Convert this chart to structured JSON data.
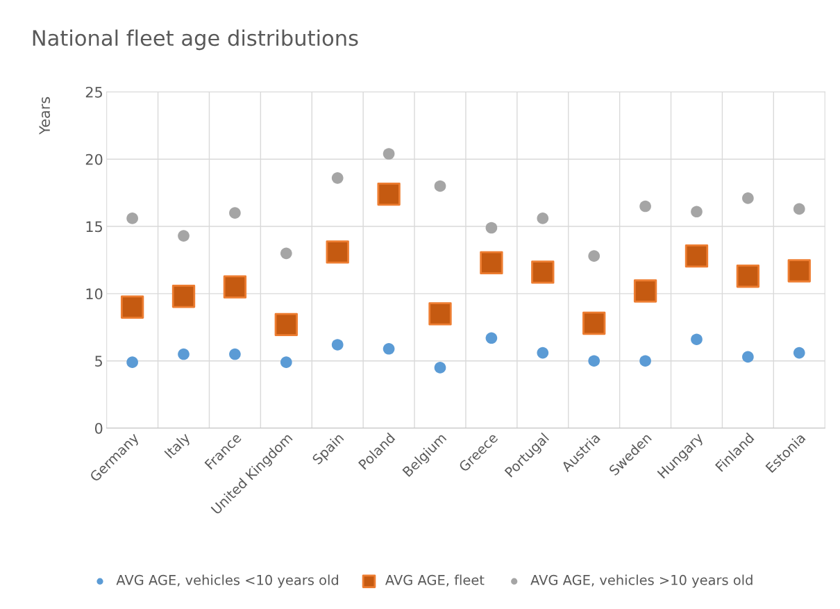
{
  "chart_data": {
    "type": "scatter",
    "title": "National fleet age distributions",
    "ylabel": "Years",
    "categories": [
      "Germany",
      "Italy",
      "France",
      "United Kingdom",
      "Spain",
      "Poland",
      "Belgium",
      "Greece",
      "Portugal",
      "Austria",
      "Sweden",
      "Hungary",
      "Finland",
      "Estonia"
    ],
    "series": [
      {
        "name": "AVG AGE, vehicles <10 years old",
        "color": "#5b9bd5",
        "marker": "circle",
        "values": [
          4.9,
          5.5,
          5.5,
          4.9,
          6.2,
          5.9,
          4.5,
          6.7,
          5.6,
          5.0,
          5.0,
          6.6,
          5.3,
          5.6
        ]
      },
      {
        "name": "AVG AGE, fleet",
        "color": "#c55a11",
        "marker": "square",
        "values": [
          9.0,
          9.8,
          10.5,
          7.7,
          13.1,
          17.4,
          8.5,
          12.3,
          11.6,
          7.8,
          10.2,
          12.8,
          11.3,
          11.7
        ]
      },
      {
        "name": "AVG AGE, vehicles >10 years old",
        "color": "#a5a5a5",
        "marker": "circle",
        "values": [
          15.6,
          14.3,
          16.0,
          13.0,
          18.6,
          20.4,
          18.0,
          14.9,
          15.6,
          12.8,
          16.5,
          16.1,
          17.1,
          16.3
        ]
      }
    ],
    "ylim": [
      0,
      25
    ],
    "yticks": [
      0,
      5,
      10,
      15,
      20,
      25
    ],
    "grid": true,
    "legend": "bottom"
  }
}
